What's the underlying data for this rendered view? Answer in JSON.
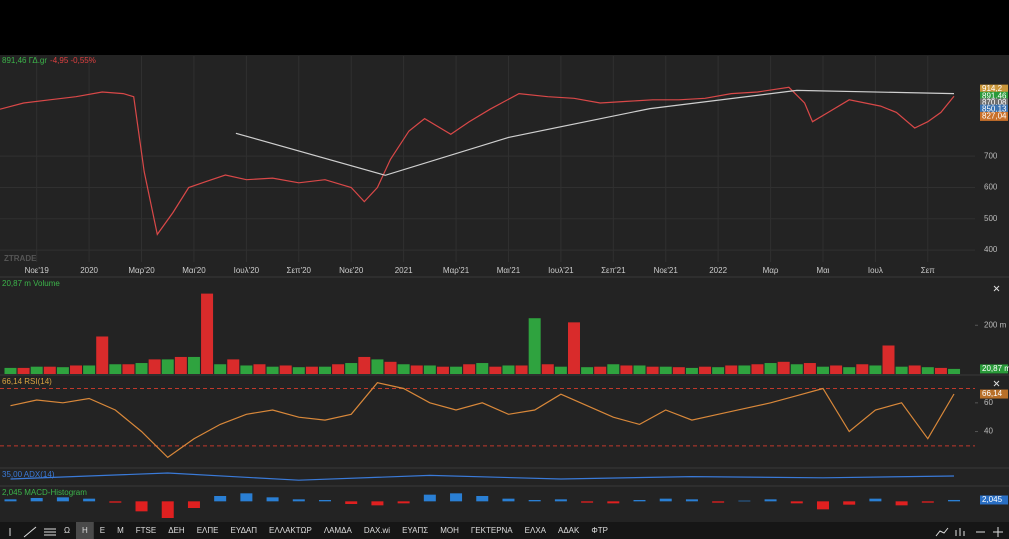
{
  "chart_data": [
    {
      "type": "line",
      "title": "891,46 ΓΔ.gr",
      "change": "-4,95 -0,55%",
      "title_color": "#3cb44a",
      "change_color": "#e04040",
      "watermark": "ZTRADE",
      "xlim": [
        -1.4,
        35.8
      ],
      "xticks": [
        {
          "value": 0,
          "label": "Νοε'19"
        },
        {
          "value": 2,
          "label": "2020"
        },
        {
          "value": 4,
          "label": "Μαρ'20"
        },
        {
          "value": 6,
          "label": "Μαι'20"
        },
        {
          "value": 8,
          "label": "Ιουλ'20"
        },
        {
          "value": 10,
          "label": "Σεπ'20"
        },
        {
          "value": 12,
          "label": "Νοε'20"
        },
        {
          "value": 14,
          "label": "2021"
        },
        {
          "value": 16,
          "label": "Μαρ'21"
        },
        {
          "value": 18,
          "label": "Μαι'21"
        },
        {
          "value": 20,
          "label": "Ιουλ'21"
        },
        {
          "value": 22,
          "label": "Σεπ'21"
        },
        {
          "value": 24,
          "label": "Νοε'21"
        },
        {
          "value": 26,
          "label": "2022"
        },
        {
          "value": 28,
          "label": "Μαρ"
        },
        {
          "value": 30,
          "label": "Μαι"
        },
        {
          "value": 32,
          "label": "Ιουλ"
        },
        {
          "value": 34,
          "label": "Σεπ"
        }
      ],
      "ylim": [
        362,
        1020
      ],
      "yticks": [
        400,
        500,
        600,
        700
      ],
      "grid": true,
      "series": [
        {
          "color": "#d94848",
          "x": [
            -1.4,
            -0.5,
            0.5,
            1.5,
            2.5,
            3.3,
            3.7,
            4.1,
            4.6,
            5.2,
            5.8,
            6.5,
            7.2,
            8,
            9,
            10,
            11,
            12,
            12.5,
            13,
            13.5,
            14.2,
            14.8,
            15.8,
            16.5,
            17.3,
            18.4,
            19.5,
            20.5,
            21.5,
            22.5,
            23.5,
            24.5,
            25.5,
            26.5,
            27.5,
            28.7,
            29.3,
            29.6,
            30.2,
            31,
            32.2,
            32.8,
            33.5,
            34,
            34.5,
            35
          ],
          "values": [
            850,
            870,
            880,
            890,
            905,
            900,
            890,
            650,
            450,
            520,
            600,
            620,
            640,
            625,
            630,
            615,
            625,
            600,
            555,
            600,
            690,
            780,
            820,
            770,
            810,
            850,
            900,
            890,
            885,
            870,
            875,
            880,
            880,
            885,
            900,
            905,
            920,
            870,
            810,
            840,
            880,
            860,
            840,
            790,
            810,
            840,
            891.46
          ]
        },
        {
          "color": "#cfcfcf",
          "x": [
            7.6,
            13.3,
            18,
            23.4,
            29,
            35
          ],
          "values": [
            773,
            639,
            760,
            852,
            910,
            900
          ]
        }
      ],
      "price_labels": [
        {
          "value": 914.2,
          "label": "914,2",
          "color": "#c9963a"
        },
        {
          "value": 891.46,
          "label": "891,46",
          "color": "#2a9a3a"
        },
        {
          "value": 870.08,
          "label": "870,08",
          "color": "#6e6e6e"
        },
        {
          "value": 850.13,
          "label": "850,13",
          "color": "#3a72b0"
        },
        {
          "value": 827.04,
          "label": "827,04",
          "color": "#c8702a"
        }
      ]
    },
    {
      "type": "bar",
      "title": "20,87 m Volume",
      "title_color": "#3cb44a",
      "ylim": [
        0,
        390
      ],
      "yticks": [
        {
          "value": 200,
          "label": "200 m"
        }
      ],
      "series": [
        {
          "color": "#2fa33f",
          "x": [
            -1,
            0,
            1,
            2,
            3,
            4,
            5,
            6,
            7,
            8,
            9,
            10,
            11,
            12,
            13,
            14,
            15,
            16,
            17,
            18,
            19,
            20,
            21,
            22,
            23,
            24,
            25,
            26,
            27,
            28,
            29,
            30,
            31,
            32,
            33,
            34,
            35
          ],
          "values": [
            25,
            30,
            28,
            35,
            40,
            45,
            60,
            70,
            40,
            35,
            30,
            28,
            30,
            45,
            60,
            40,
            35,
            30,
            45,
            35,
            229,
            30,
            28,
            40,
            35,
            30,
            25,
            28,
            35,
            45,
            40,
            30,
            28,
            35,
            30,
            28,
            20.87
          ]
        },
        {
          "color": "#d92b2b",
          "x": [
            -0.5,
            0.5,
            1.5,
            2.5,
            3.5,
            4.5,
            5.5,
            6.5,
            7.5,
            8.5,
            9.5,
            10.5,
            11.5,
            12.5,
            13.5,
            14.5,
            15.5,
            16.5,
            17.5,
            18.5,
            19.5,
            20.5,
            21.5,
            22.5,
            23.5,
            24.5,
            25.5,
            26.5,
            27.5,
            28.5,
            29.5,
            30.5,
            31.5,
            32.5,
            33.5,
            34.5
          ],
          "values": [
            25,
            30,
            35,
            154,
            40,
            60,
            70,
            330,
            60,
            40,
            35,
            30,
            40,
            70,
            50,
            35,
            30,
            40,
            30,
            35,
            40,
            212,
            30,
            35,
            30,
            28,
            30,
            35,
            40,
            50,
            45,
            35,
            40,
            117,
            35,
            25
          ]
        }
      ],
      "price_labels": [
        {
          "value": 20.87,
          "label": "20,87 m",
          "color": "#2a9a3a"
        }
      ]
    },
    {
      "type": "line",
      "title": "66,14 RSI(14)",
      "title_color": "#d9a441",
      "ylim": [
        16,
        78
      ],
      "yticks": [
        40,
        60
      ],
      "levels": [
        70,
        30
      ],
      "level_color": "#c0392b",
      "series": [
        {
          "color": "#d9883a",
          "x": [
            -1,
            0,
            1,
            2,
            3,
            4,
            5,
            6,
            7,
            8,
            9,
            10,
            11,
            12,
            13,
            14,
            15,
            16,
            17,
            18,
            19,
            20,
            21,
            22,
            23,
            24,
            25,
            26,
            27,
            28,
            29,
            30,
            31,
            32,
            33,
            34,
            35
          ],
          "values": [
            58,
            62,
            60,
            63,
            55,
            40,
            22,
            35,
            45,
            52,
            55,
            50,
            48,
            52,
            74,
            70,
            60,
            55,
            60,
            52,
            55,
            66,
            58,
            50,
            45,
            55,
            48,
            52,
            56,
            60,
            65,
            70,
            40,
            55,
            60,
            35,
            66.14
          ]
        }
      ],
      "price_labels": [
        {
          "value": 66.14,
          "label": "66,14",
          "color": "#b8702a"
        }
      ]
    },
    {
      "type": "line",
      "title": "35,00 ADX(14)",
      "title_color": "#3a7ad8",
      "ylim": [
        20,
        45
      ],
      "series": [
        {
          "color": "#3a7ad8",
          "x": [
            -1,
            5,
            10,
            15,
            20,
            25,
            30,
            35
          ],
          "values": [
            30,
            40,
            28,
            36,
            30,
            34,
            32,
            35
          ]
        }
      ]
    },
    {
      "type": "bar",
      "title": "2,045 MACD-Histogram",
      "title_color": "#3cb44a",
      "ylim": [
        -28,
        20
      ],
      "positive_color": "#2a7fd4",
      "negative_color": "#e02020",
      "series": [
        {
          "x": [
            -1,
            0,
            1,
            2,
            3,
            4,
            5,
            6,
            7,
            8,
            9,
            10,
            11,
            12,
            13,
            14,
            15,
            16,
            17,
            18,
            19,
            20,
            21,
            22,
            23,
            24,
            25,
            26,
            27,
            28,
            29,
            30,
            31,
            32,
            33,
            34,
            35
          ],
          "values": [
            3,
            5,
            6,
            4,
            -2,
            -15,
            -25,
            -10,
            8,
            12,
            6,
            3,
            2,
            -4,
            -6,
            -3,
            10,
            12,
            8,
            4,
            2,
            3,
            -2,
            -3,
            2,
            4,
            3,
            -2,
            1,
            3,
            -3,
            -12,
            -5,
            4,
            -6,
            -2,
            2.045
          ]
        }
      ],
      "price_labels": [
        {
          "value": 2.045,
          "label": "2,045",
          "color": "#2a6fc4"
        }
      ]
    }
  ],
  "toolbar": {
    "items": [
      "Ω",
      "Η",
      "Ε",
      "Μ",
      "FTSE",
      "ΔΕΗ",
      "ΕΛΠΕ",
      "ΕΥΔΑΠ",
      "ΕΛΛΑΚΤΩΡ",
      "ΛΑΜΔΑ",
      "DAX.wi",
      "ΕΥΑΠΣ",
      "ΜΟΗ",
      "ΓΕΚΤΕΡΝΑ",
      "ΕΛΧΑ",
      "ΑΔΑΚ",
      "ΦΤΡ"
    ],
    "selected_index": 1
  }
}
